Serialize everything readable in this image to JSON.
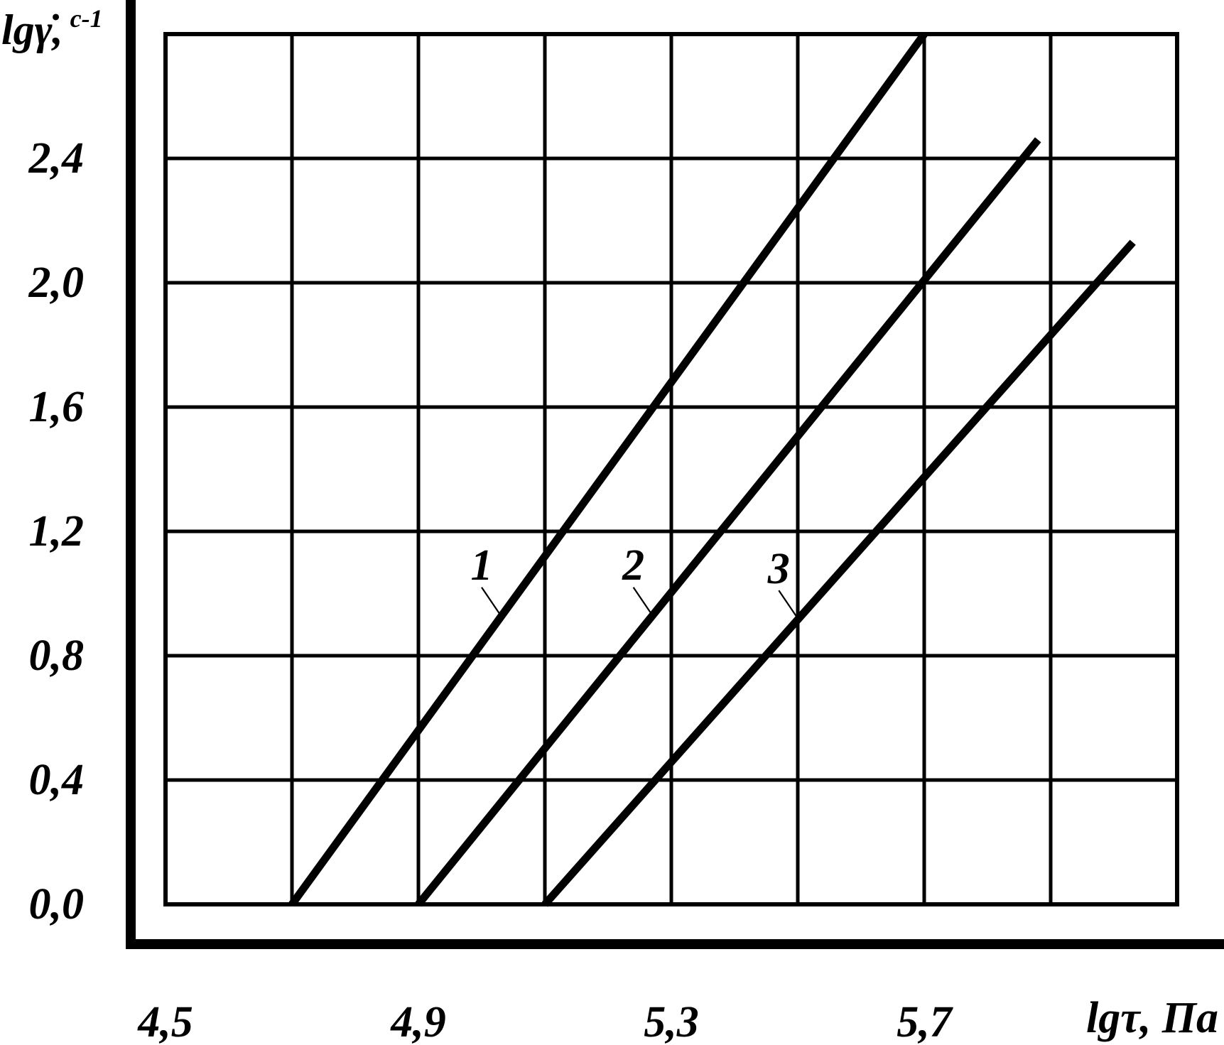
{
  "page": {
    "background": "#ffffff",
    "ink": "#000000"
  },
  "chart_data": {
    "type": "line",
    "title": "",
    "xlabel": "lgτ, Па",
    "ylabel": "lgγ̇, с⁻¹",
    "ylabel_main": "lgγ̇,",
    "ylabel_superscript": "с-1",
    "grid": true,
    "legend": "none",
    "x_axis": {
      "min": 4.5,
      "max": 6.1,
      "grid_step": 0.2,
      "ticks": [
        {
          "value": 4.5,
          "label": "4,5"
        },
        {
          "value": 4.9,
          "label": "4,9"
        },
        {
          "value": 5.3,
          "label": "5,3"
        },
        {
          "value": 5.7,
          "label": "5,7"
        }
      ]
    },
    "y_axis": {
      "min": 0.0,
      "max": 2.8,
      "grid_step": 0.4,
      "ticks": [
        {
          "value": 2.4,
          "label": "2,4"
        },
        {
          "value": 2.0,
          "label": "2,0"
        },
        {
          "value": 1.6,
          "label": "1,6"
        },
        {
          "value": 1.2,
          "label": "1,2"
        },
        {
          "value": 0.8,
          "label": "0,8"
        },
        {
          "value": 0.4,
          "label": "0,4"
        },
        {
          "value": 0.0,
          "label": "0,0"
        }
      ]
    },
    "series": [
      {
        "name": "1",
        "points": [
          [
            4.7,
            0.0
          ],
          [
            5.7,
            2.8
          ]
        ]
      },
      {
        "name": "2",
        "points": [
          [
            4.9,
            0.0
          ],
          [
            5.88,
            2.46
          ]
        ]
      },
      {
        "name": "3",
        "points": [
          [
            5.1,
            0.0
          ],
          [
            6.03,
            2.13
          ]
        ]
      }
    ],
    "annotations": [
      {
        "label": "1",
        "label_at": [
          5.0,
          1.09
        ],
        "leader_from": [
          5.0,
          1.02
        ],
        "leader_to": [
          5.03,
          0.93
        ]
      },
      {
        "label": "2",
        "label_at": [
          5.24,
          1.09
        ],
        "leader_from": [
          5.24,
          1.02
        ],
        "leader_to": [
          5.27,
          0.93
        ]
      },
      {
        "label": "3",
        "label_at": [
          5.47,
          1.08
        ],
        "leader_from": [
          5.47,
          1.01
        ],
        "leader_to": [
          5.5,
          0.92
        ]
      }
    ]
  }
}
